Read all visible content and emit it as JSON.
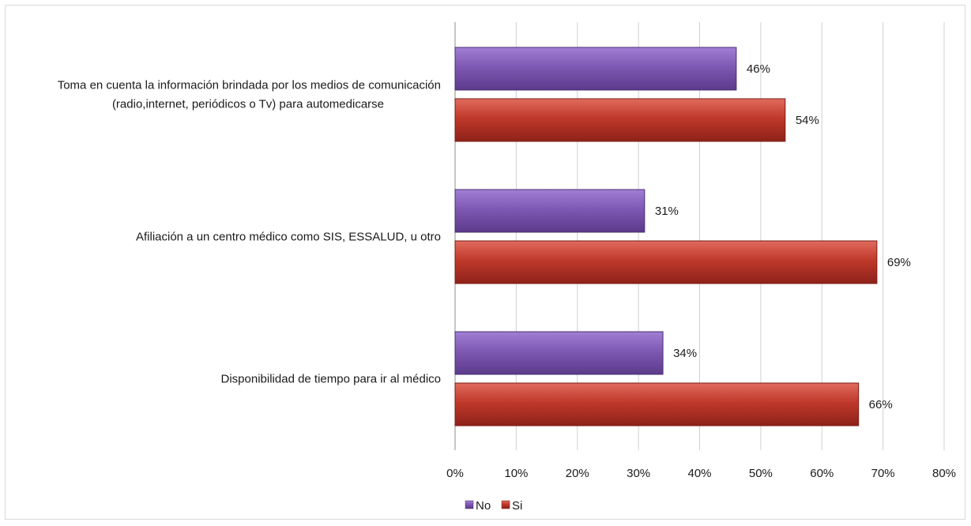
{
  "chart_data": {
    "type": "bar",
    "orientation": "horizontal",
    "title": "",
    "xlabel": "",
    "ylabel": "",
    "xlim": [
      0,
      80
    ],
    "x_ticks": [
      "0%",
      "10%",
      "20%",
      "30%",
      "40%",
      "50%",
      "60%",
      "70%",
      "80%"
    ],
    "grid": true,
    "legend_position": "bottom",
    "categories": [
      [
        "Toma en cuenta la información brindada por los medios de comunicación",
        "(radio,internet, periódicos o Tv) para automedicarse"
      ],
      [
        "Afiliación a un centro médico como SIS, ESSALUD, u otro"
      ],
      [
        "Disponibilidad de tiempo para ir al médico"
      ]
    ],
    "series": [
      {
        "name": "No",
        "color": "#7f59b3",
        "values": [
          46,
          31,
          34
        ],
        "labels": [
          "46%",
          "31%",
          "34%"
        ]
      },
      {
        "name": "Si",
        "color": "#c0392b",
        "values": [
          54,
          69,
          66
        ],
        "labels": [
          "54%",
          "69%",
          "66%"
        ]
      }
    ]
  }
}
